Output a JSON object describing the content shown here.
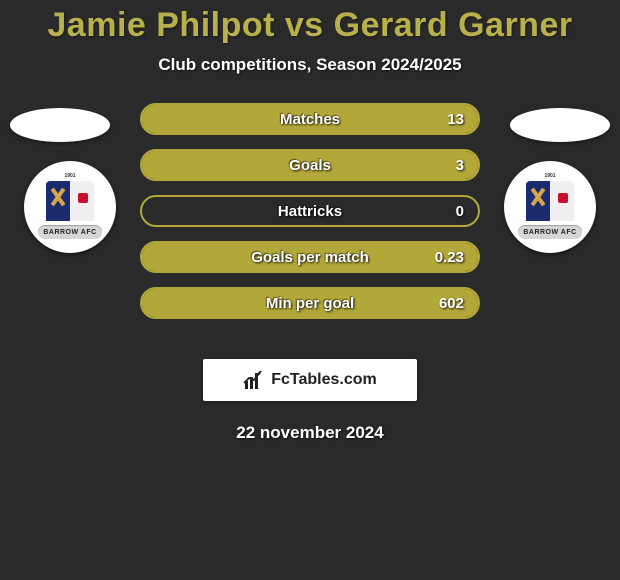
{
  "title": "Jamie Philpot vs Gerard Garner",
  "subtitle": "Club competitions, Season 2024/2025",
  "date": "22 november 2024",
  "title_color": "#b8b04a",
  "text_color": "#ffffff",
  "background_color": "#2a2a2a",
  "bar_color": "#b2a83a",
  "logo_text": "FcTables.com",
  "club_name": "BARROW AFC",
  "club_year": "1901",
  "stats": [
    {
      "label": "Matches",
      "value": "13",
      "fill_pct": 100
    },
    {
      "label": "Goals",
      "value": "3",
      "fill_pct": 100
    },
    {
      "label": "Hattricks",
      "value": "0",
      "fill_pct": 0
    },
    {
      "label": "Goals per match",
      "value": "0.23",
      "fill_pct": 100
    },
    {
      "label": "Min per goal",
      "value": "602",
      "fill_pct": 100
    }
  ]
}
